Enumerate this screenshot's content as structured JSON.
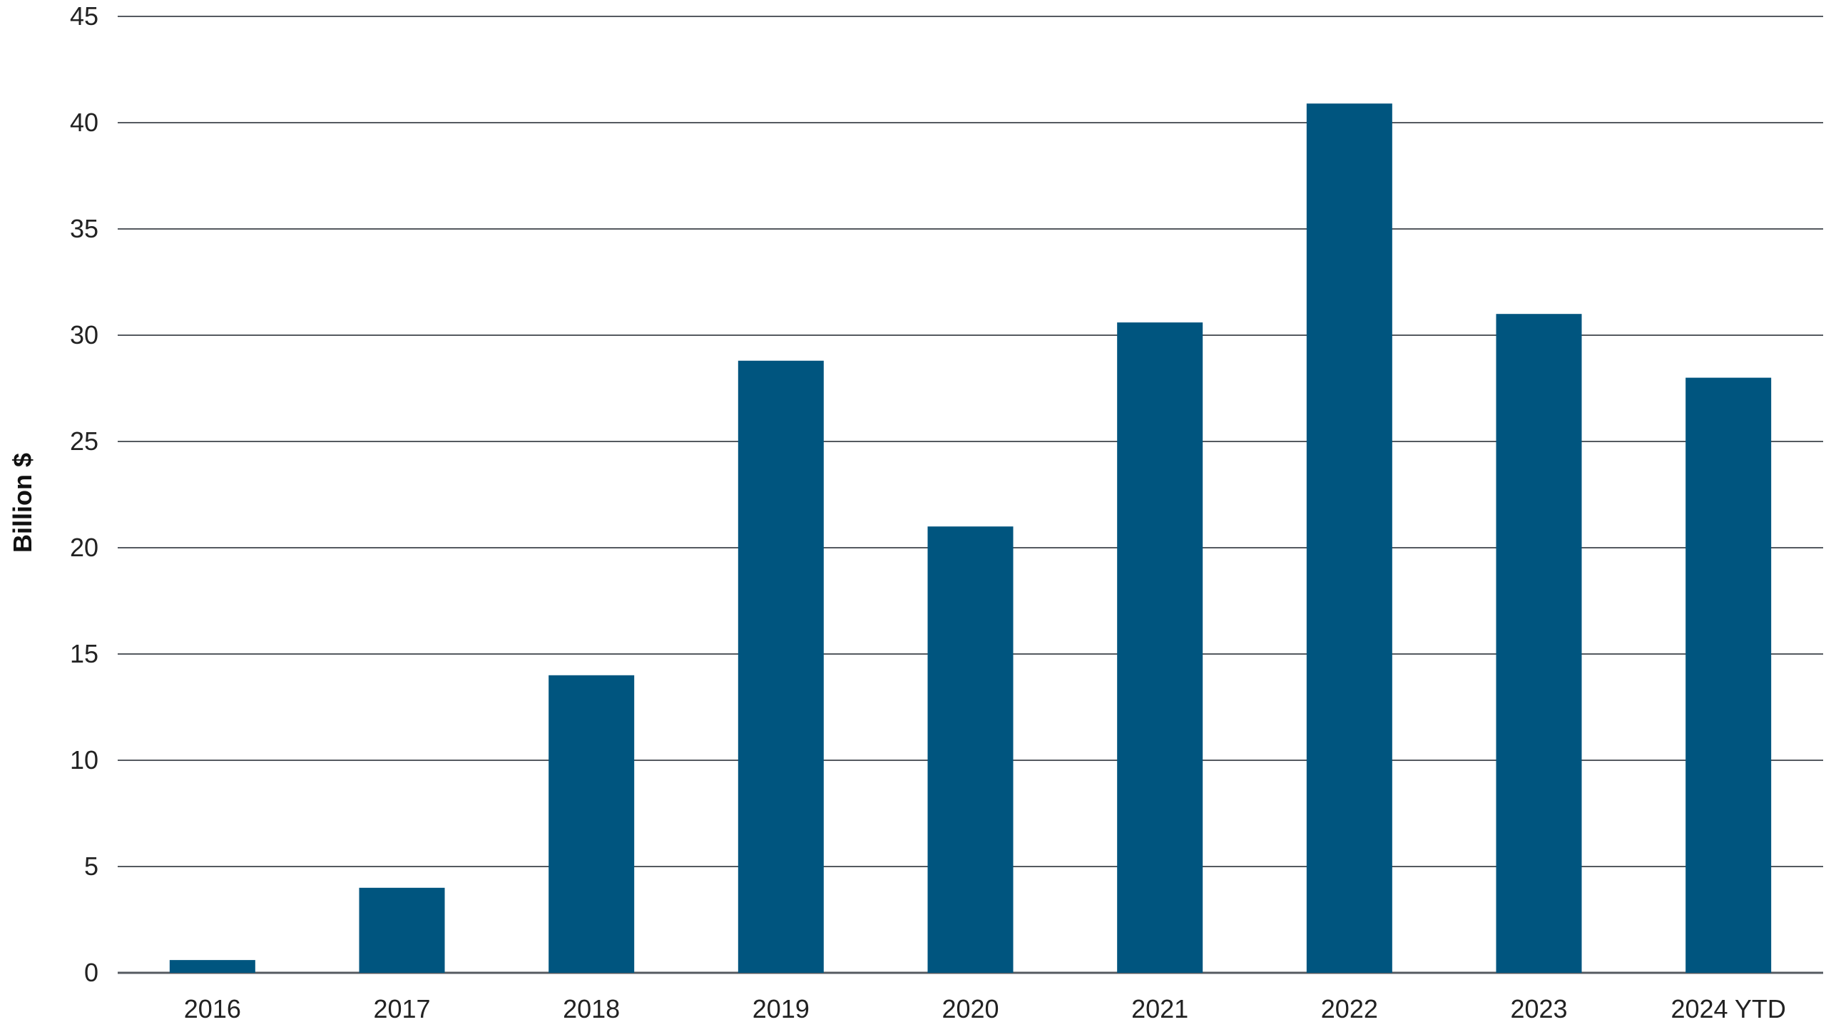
{
  "chart_data": {
    "type": "bar",
    "title": "",
    "xlabel": "",
    "ylabel": "Billion $",
    "ylim": [
      0,
      45
    ],
    "yticks": [
      0,
      5,
      10,
      15,
      20,
      25,
      30,
      35,
      40,
      45
    ],
    "grid": true,
    "categories": [
      "2016",
      "2017",
      "2018",
      "2019",
      "2020",
      "2021",
      "2022",
      "2023",
      "2024 YTD"
    ],
    "values": [
      0.6,
      4.0,
      14.0,
      28.8,
      21.0,
      30.6,
      40.9,
      31.0,
      28.0
    ],
    "colors": {
      "bar": "#00557f",
      "grid": "#555a60",
      "axis": "#555a60"
    }
  }
}
